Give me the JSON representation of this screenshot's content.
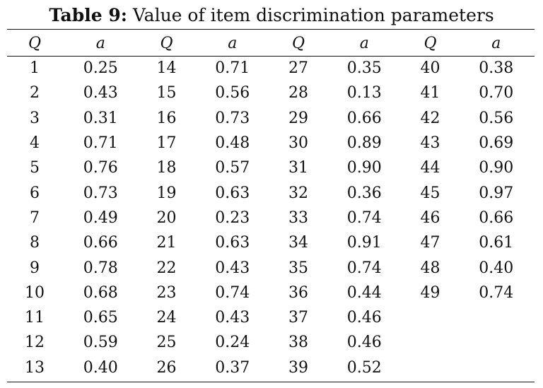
{
  "caption": {
    "label": "Table 9:",
    "text": "Value of item discrimination parameters"
  },
  "headers": [
    "Q",
    "a",
    "Q",
    "a",
    "Q",
    "a",
    "Q",
    "a"
  ],
  "rows": [
    [
      "1",
      "0.25",
      "14",
      "0.71",
      "27",
      "0.35",
      "40",
      "0.38"
    ],
    [
      "2",
      "0.43",
      "15",
      "0.56",
      "28",
      "0.13",
      "41",
      "0.70"
    ],
    [
      "3",
      "0.31",
      "16",
      "0.73",
      "29",
      "0.66",
      "42",
      "0.56"
    ],
    [
      "4",
      "0.71",
      "17",
      "0.48",
      "30",
      "0.89",
      "43",
      "0.69"
    ],
    [
      "5",
      "0.76",
      "18",
      "0.57",
      "31",
      "0.90",
      "44",
      "0.90"
    ],
    [
      "6",
      "0.73",
      "19",
      "0.63",
      "32",
      "0.36",
      "45",
      "0.97"
    ],
    [
      "7",
      "0.49",
      "20",
      "0.23",
      "33",
      "0.74",
      "46",
      "0.66"
    ],
    [
      "8",
      "0.66",
      "21",
      "0.63",
      "34",
      "0.91",
      "47",
      "0.61"
    ],
    [
      "9",
      "0.78",
      "22",
      "0.43",
      "35",
      "0.74",
      "48",
      "0.40"
    ],
    [
      "10",
      "0.68",
      "23",
      "0.74",
      "36",
      "0.44",
      "49",
      "0.74"
    ],
    [
      "11",
      "0.65",
      "24",
      "0.43",
      "37",
      "0.46",
      "",
      ""
    ],
    [
      "12",
      "0.59",
      "25",
      "0.24",
      "38",
      "0.46",
      "",
      ""
    ],
    [
      "13",
      "0.40",
      "26",
      "0.37",
      "39",
      "0.52",
      "",
      ""
    ]
  ]
}
